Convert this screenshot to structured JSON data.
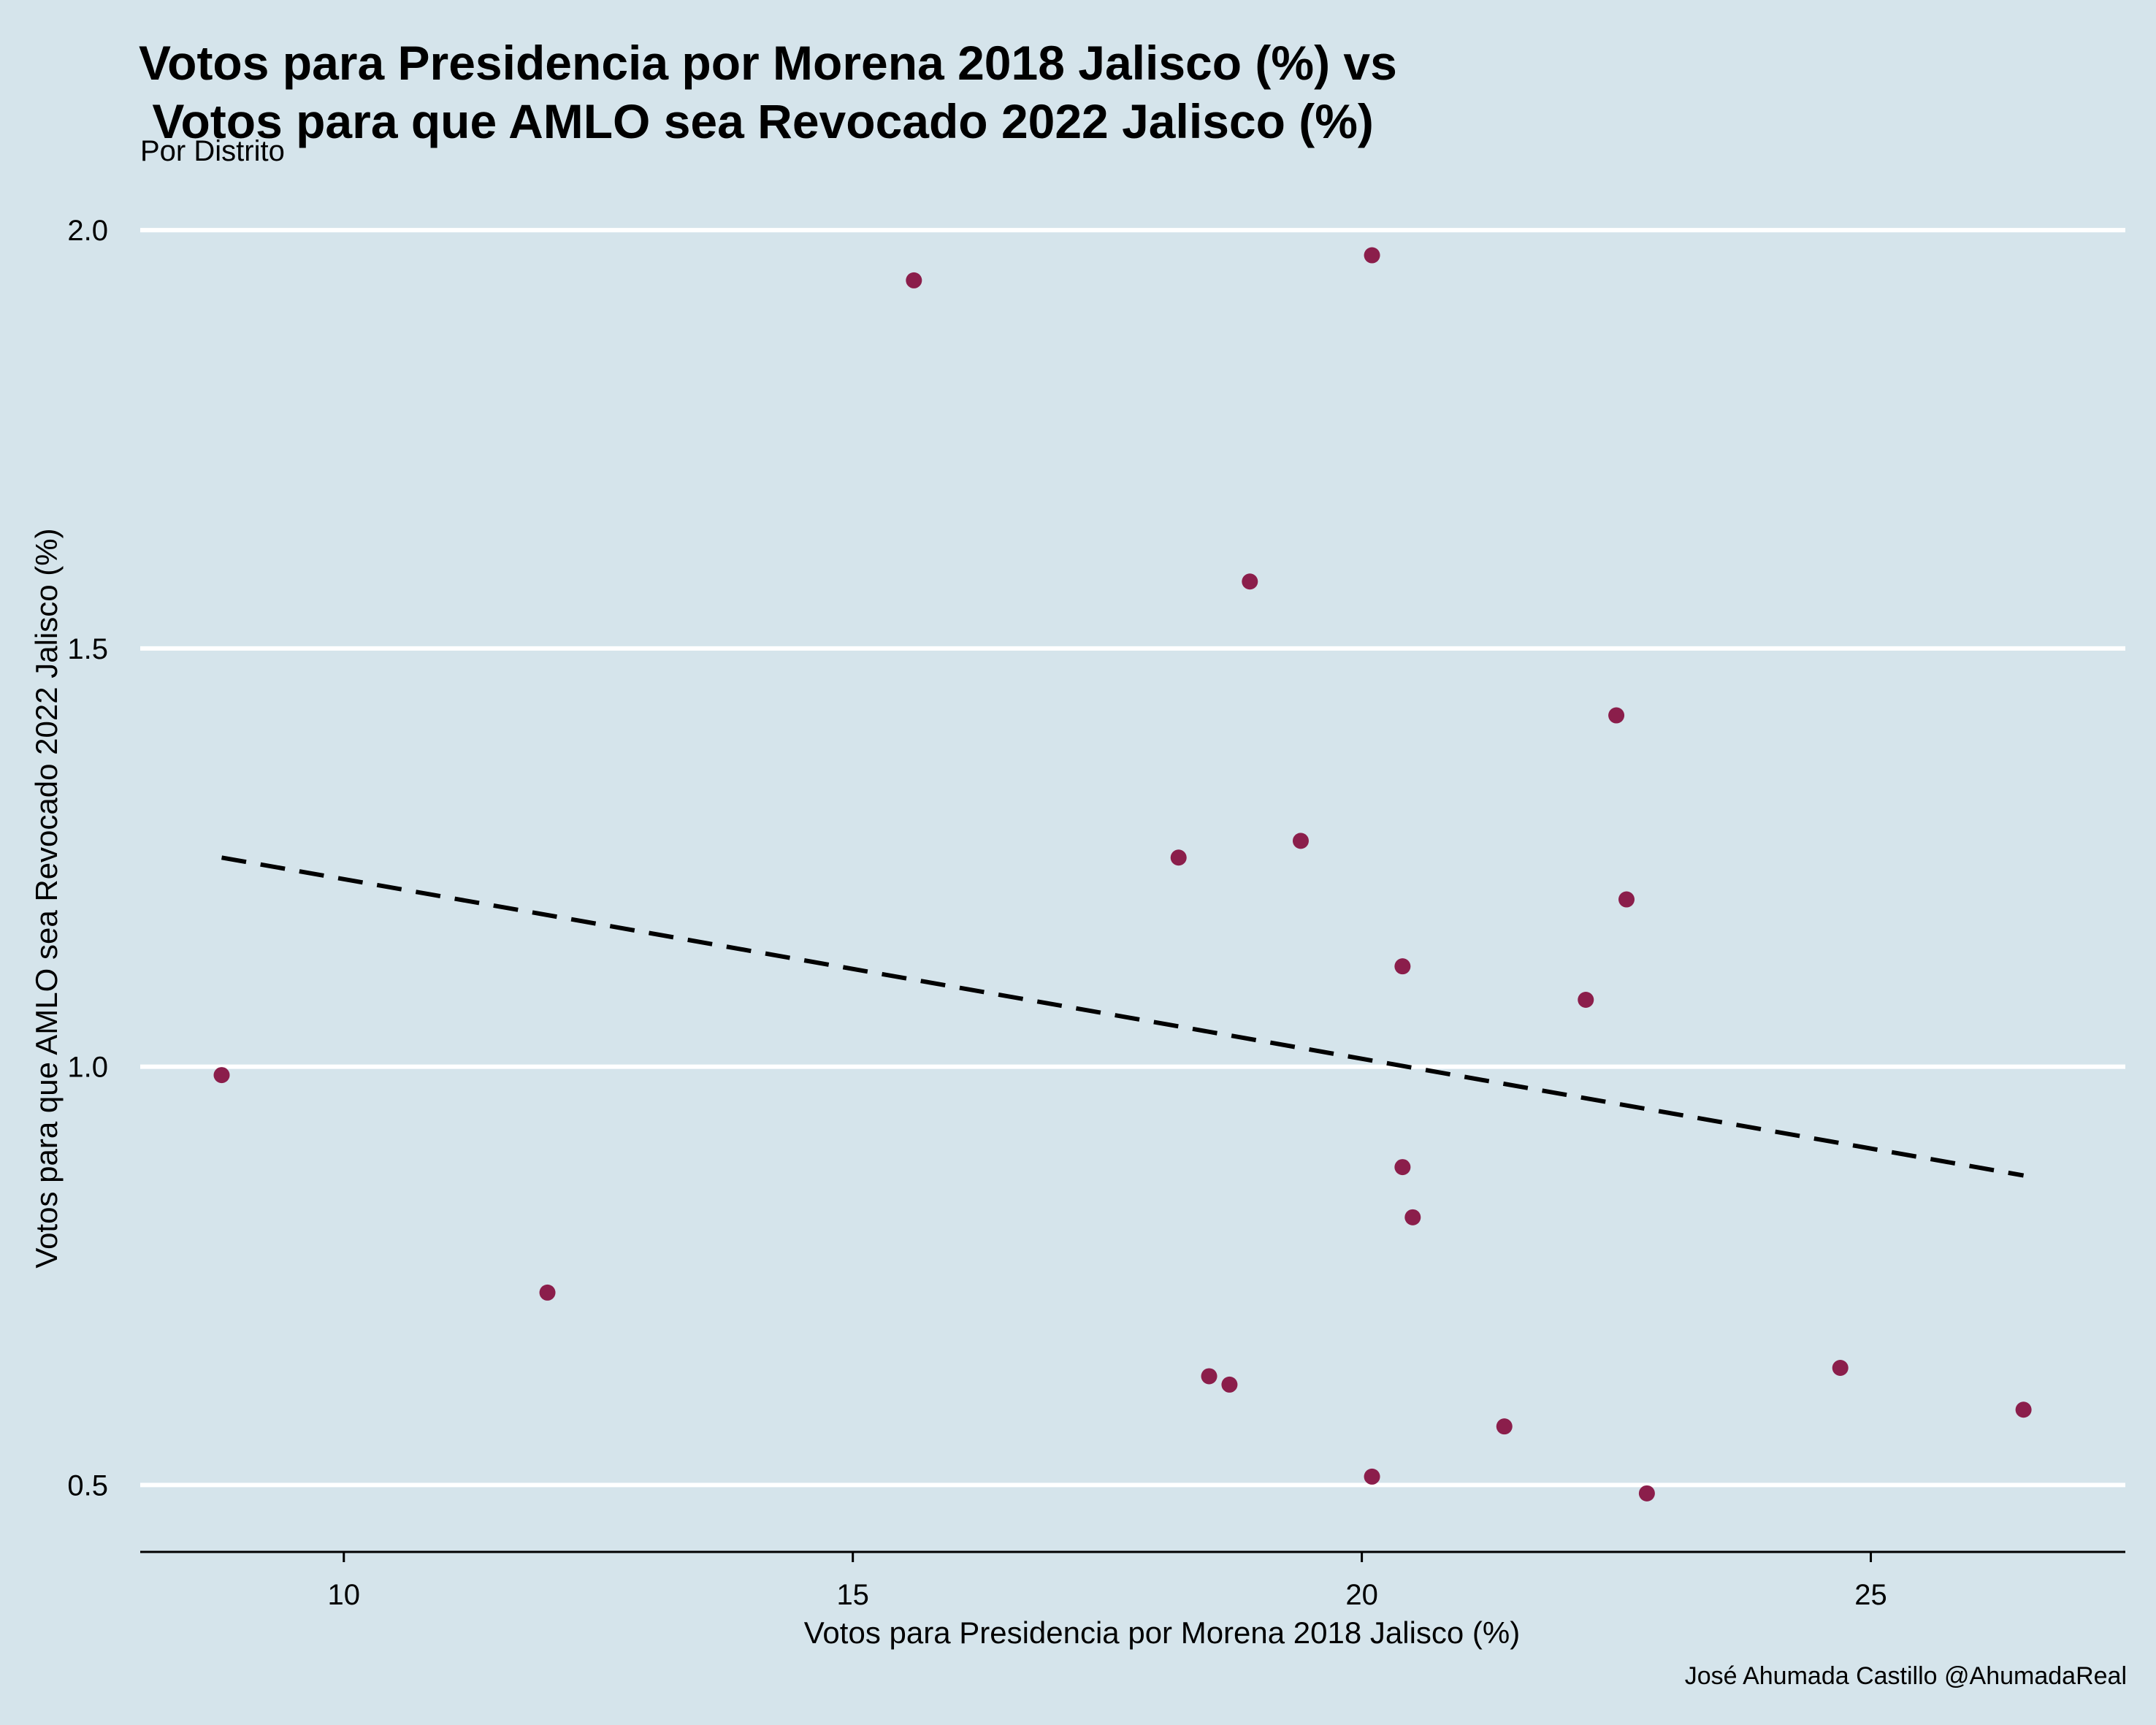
{
  "chart_data": {
    "type": "scatter",
    "title": "Votos para Presidencia por Morena 2018 Jalisco (%) vs\n Votos para que AMLO sea Revocado 2022 Jalisco (%)",
    "subtitle": "Por Distrito",
    "caption": "José Ahumada Castillo @AhumadaReal",
    "xlabel": "Votos para Presidencia por Morena 2018 Jalisco (%)",
    "ylabel": "Votos para que AMLO sea Revocado 2022 Jalisco (%)",
    "xlim": [
      8.0,
      27.5
    ],
    "ylim": [
      0.42,
      2.07
    ],
    "xticks": [
      10,
      15,
      20,
      25
    ],
    "xtick_labels": [
      "10",
      "15",
      "20",
      "25"
    ],
    "yticks": [
      0.5,
      1.0,
      1.5,
      2.0
    ],
    "ytick_labels": [
      "0.5",
      "1.0",
      "1.5",
      "2.0"
    ],
    "grid": "horizontal",
    "point_color": "#8b1e4b",
    "line_color": "#000000",
    "points": [
      {
        "x": 8.8,
        "y": 0.99
      },
      {
        "x": 12.0,
        "y": 0.73
      },
      {
        "x": 15.6,
        "y": 1.94
      },
      {
        "x": 18.2,
        "y": 1.25
      },
      {
        "x": 18.5,
        "y": 0.63
      },
      {
        "x": 18.7,
        "y": 0.62
      },
      {
        "x": 18.9,
        "y": 1.58
      },
      {
        "x": 19.4,
        "y": 1.27
      },
      {
        "x": 20.1,
        "y": 0.51
      },
      {
        "x": 20.1,
        "y": 1.97
      },
      {
        "x": 20.4,
        "y": 0.88
      },
      {
        "x": 20.4,
        "y": 1.12
      },
      {
        "x": 20.5,
        "y": 0.82
      },
      {
        "x": 21.4,
        "y": 0.57
      },
      {
        "x": 22.2,
        "y": 1.08
      },
      {
        "x": 22.5,
        "y": 1.42
      },
      {
        "x": 22.6,
        "y": 1.2
      },
      {
        "x": 22.8,
        "y": 0.49
      },
      {
        "x": 24.7,
        "y": 0.64
      },
      {
        "x": 26.5,
        "y": 0.59
      }
    ],
    "trend_line": {
      "style": "dashed",
      "x": [
        8.8,
        26.5
      ],
      "y": [
        1.25,
        0.87
      ]
    }
  }
}
